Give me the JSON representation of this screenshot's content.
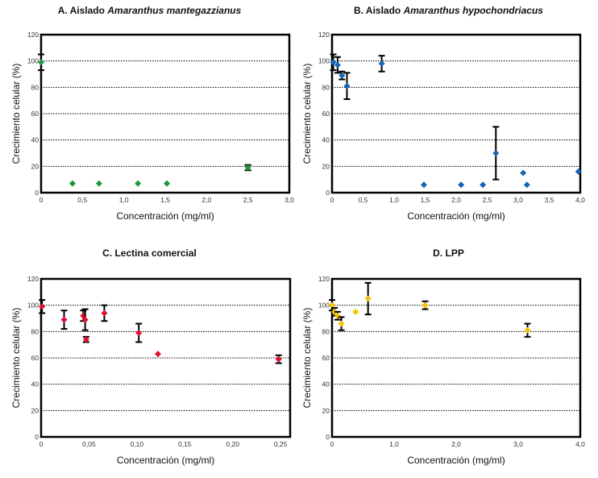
{
  "chart_data": [
    {
      "type": "scatter",
      "panel": "A",
      "title_prefix": "A. Aislado ",
      "title_species": "Amaranthus mantegazzianus",
      "xlabel": "Concentración (mg/ml)",
      "ylabel": "Crecimiento celular (%)",
      "xlim": [
        0,
        3.0
      ],
      "ylim": [
        0,
        120
      ],
      "xticks": [
        0,
        0.5,
        1.0,
        1.5,
        2.0,
        2.5,
        3.0
      ],
      "xtick_labels": [
        "0",
        "0,5",
        "1,0",
        "1,5",
        "2,0",
        "2,5",
        "3,0"
      ],
      "yticks": [
        0,
        20,
        40,
        60,
        80,
        100,
        120
      ],
      "ytick_labels": [
        "0",
        "20",
        "40",
        "60",
        "80",
        "100",
        "120"
      ],
      "grid": "horizontal-dotted",
      "marker_color": "#1a9a3a",
      "points": [
        {
          "x": 0.0,
          "y": 99,
          "err": 6
        },
        {
          "x": 0.38,
          "y": 7,
          "err": 0
        },
        {
          "x": 0.7,
          "y": 7,
          "err": 0
        },
        {
          "x": 1.17,
          "y": 7,
          "err": 0
        },
        {
          "x": 1.52,
          "y": 7,
          "err": 0
        },
        {
          "x": 2.5,
          "y": 19,
          "err": 2
        }
      ]
    },
    {
      "type": "scatter",
      "panel": "B",
      "title_prefix": "B. Aislado ",
      "title_species": "Amaranthus hypochondriacus",
      "xlabel": "Concentración (mg/ml)",
      "ylabel": "Crecimiento celular (%)",
      "xlim": [
        0,
        4.0
      ],
      "ylim": [
        0,
        120
      ],
      "xticks": [
        0,
        0.5,
        1.0,
        1.5,
        2.0,
        2.5,
        3.0,
        3.5,
        4.0
      ],
      "xtick_labels": [
        "0",
        "0,5",
        "1,0",
        "1,5",
        "2,0",
        "2,5",
        "3,0",
        "3,5",
        "4,0"
      ],
      "yticks": [
        0,
        20,
        40,
        60,
        80,
        100,
        120
      ],
      "ytick_labels": [
        "0",
        "20",
        "40",
        "60",
        "80",
        "100",
        "120"
      ],
      "grid": "horizontal-dotted",
      "marker_color": "#1565b5",
      "points": [
        {
          "x": 0.02,
          "y": 99,
          "err": 6
        },
        {
          "x": 0.09,
          "y": 97,
          "err": 6
        },
        {
          "x": 0.16,
          "y": 89,
          "err": 3
        },
        {
          "x": 0.24,
          "y": 81,
          "err": 10
        },
        {
          "x": 0.8,
          "y": 98,
          "err": 6
        },
        {
          "x": 1.48,
          "y": 6,
          "err": 0
        },
        {
          "x": 2.08,
          "y": 6,
          "err": 0
        },
        {
          "x": 2.43,
          "y": 6,
          "err": 0
        },
        {
          "x": 2.64,
          "y": 30,
          "err": 20
        },
        {
          "x": 3.08,
          "y": 15,
          "err": 0
        },
        {
          "x": 3.14,
          "y": 6,
          "err": 0
        },
        {
          "x": 3.97,
          "y": 16,
          "err": 0
        }
      ]
    },
    {
      "type": "scatter",
      "panel": "C",
      "title_prefix": "C. Lectina comercial",
      "title_species": "",
      "xlabel": "Concentración (mg/ml)",
      "ylabel": "Crecimiento celular (%)",
      "xlim": [
        0,
        0.26
      ],
      "ylim": [
        0,
        120
      ],
      "xticks": [
        0,
        0.05,
        0.1,
        0.15,
        0.2,
        0.25
      ],
      "xtick_labels": [
        "0",
        "0,05",
        "0,10",
        "0,15",
        "0,20",
        "0,25"
      ],
      "yticks": [
        0,
        20,
        40,
        60,
        80,
        100,
        120
      ],
      "ytick_labels": [
        "0",
        "20",
        "40",
        "60",
        "80",
        "100",
        "120"
      ],
      "grid": "horizontal-dotted",
      "marker_color": "#e0102f",
      "points": [
        {
          "x": 0.001,
          "y": 99,
          "err": 5
        },
        {
          "x": 0.024,
          "y": 89,
          "err": 7
        },
        {
          "x": 0.044,
          "y": 92,
          "err": 4
        },
        {
          "x": 0.046,
          "y": 89,
          "err": 8
        },
        {
          "x": 0.047,
          "y": 74,
          "err": 2
        },
        {
          "x": 0.066,
          "y": 94,
          "err": 6
        },
        {
          "x": 0.102,
          "y": 79,
          "err": 7
        },
        {
          "x": 0.122,
          "y": 63,
          "err": 0
        },
        {
          "x": 0.248,
          "y": 59,
          "err": 3
        }
      ]
    },
    {
      "type": "scatter",
      "panel": "D",
      "title_prefix": "D. LPP",
      "title_species": "",
      "xlabel": "Concentración (mg/ml)",
      "ylabel": "Crecimiento celular (%)",
      "xlim": [
        0,
        4.0
      ],
      "ylim": [
        0,
        120
      ],
      "xticks": [
        0,
        1.0,
        2.0,
        3.0,
        4.0
      ],
      "xtick_labels": [
        "0",
        "1,0",
        "2,0",
        "3,0",
        "4,0"
      ],
      "yticks": [
        0,
        20,
        40,
        60,
        80,
        100,
        120
      ],
      "ytick_labels": [
        "0",
        "20",
        "40",
        "60",
        "80",
        "100",
        "120"
      ],
      "grid": "horizontal-dotted",
      "marker_color": "#f5c400",
      "points": [
        {
          "x": 0.0,
          "y": 100,
          "err": 4
        },
        {
          "x": 0.04,
          "y": 95,
          "err": 3
        },
        {
          "x": 0.09,
          "y": 92,
          "err": 3
        },
        {
          "x": 0.15,
          "y": 86,
          "err": 5
        },
        {
          "x": 0.38,
          "y": 95,
          "err": 0
        },
        {
          "x": 0.58,
          "y": 105,
          "err": 12
        },
        {
          "x": 1.5,
          "y": 100,
          "err": 3
        },
        {
          "x": 3.15,
          "y": 81,
          "err": 5
        }
      ]
    }
  ]
}
